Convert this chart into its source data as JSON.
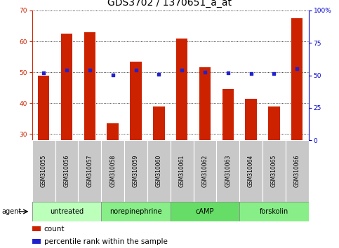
{
  "title": "GDS3702 / 1370651_a_at",
  "samples": [
    "GSM310055",
    "GSM310056",
    "GSM310057",
    "GSM310058",
    "GSM310059",
    "GSM310060",
    "GSM310061",
    "GSM310062",
    "GSM310063",
    "GSM310064",
    "GSM310065",
    "GSM310066"
  ],
  "count_values": [
    49,
    62.5,
    63,
    33.5,
    53.5,
    39,
    61,
    51.5,
    44.5,
    41.5,
    39,
    67.5
  ],
  "percentile_values": [
    52,
    54,
    54,
    50.5,
    54,
    51,
    54,
    52.5,
    52,
    51.5,
    51.5,
    55
  ],
  "ylim_left": [
    28,
    70
  ],
  "ylim_right": [
    0,
    100
  ],
  "yticks_left": [
    30,
    40,
    50,
    60,
    70
  ],
  "yticks_right": [
    0,
    25,
    50,
    75,
    100
  ],
  "bar_color": "#cc2200",
  "dot_color": "#2222cc",
  "groups": [
    {
      "label": "untreated",
      "start": 0,
      "end": 3,
      "color": "#bbffbb"
    },
    {
      "label": "norepinephrine",
      "start": 3,
      "end": 6,
      "color": "#88ee88"
    },
    {
      "label": "cAMP",
      "start": 6,
      "end": 9,
      "color": "#66dd66"
    },
    {
      "label": "forskolin",
      "start": 9,
      "end": 12,
      "color": "#88ee88"
    }
  ],
  "legend_count_label": "count",
  "legend_percentile_label": "percentile rank within the sample",
  "agent_label": "agent",
  "title_fontsize": 10,
  "tick_fontsize": 6.5,
  "label_fontsize": 5.5,
  "group_fontsize": 7,
  "legend_fontsize": 7.5,
  "bar_width": 0.5,
  "right_axis_color": "#0000cc",
  "left_axis_color": "#cc2200",
  "sample_bg_color": "#c8c8c8",
  "group_border_color": "#555555"
}
